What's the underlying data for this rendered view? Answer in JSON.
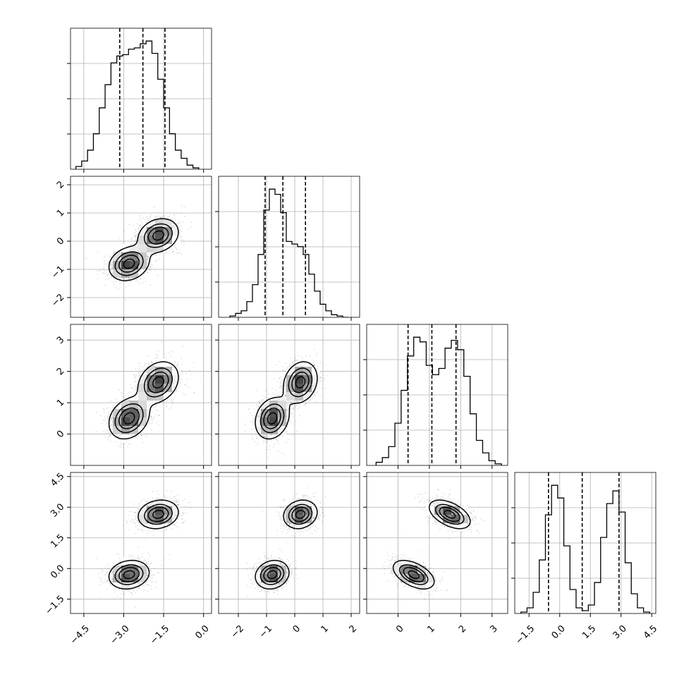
{
  "chart_data": {
    "type": "corner",
    "grid": true,
    "axes": [
      {
        "id": "x0",
        "range": [
          -5.0,
          0.3
        ],
        "ticks": [
          -4.5,
          -3.0,
          -1.5,
          0.0
        ],
        "tick_labels": [
          "−4.5",
          "−3.0",
          "−1.5",
          "0.0"
        ]
      },
      {
        "id": "x1",
        "range": [
          -2.7,
          2.3
        ],
        "ticks": [
          -2,
          -1,
          0,
          1,
          2
        ],
        "tick_labels": [
          "−2",
          "−1",
          "0",
          "1",
          "2"
        ]
      },
      {
        "id": "x2",
        "range": [
          -1.0,
          3.5
        ],
        "ticks": [
          0,
          1,
          2,
          3
        ],
        "tick_labels": [
          "0",
          "1",
          "2",
          "3"
        ]
      },
      {
        "id": "x3",
        "range": [
          -2.2,
          4.7
        ],
        "ticks": [
          -1.5,
          0.0,
          1.5,
          3.0,
          4.5
        ],
        "tick_labels": [
          "−1.5",
          "0.0",
          "1.5",
          "3.0",
          "4.5"
        ]
      }
    ],
    "modes": [
      {
        "center": [
          -2.8,
          -0.8,
          0.5,
          -0.3
        ],
        "sd": [
          0.38,
          0.3,
          0.33,
          0.35
        ]
      },
      {
        "center": [
          -1.7,
          0.2,
          1.65,
          2.65
        ],
        "sd": [
          0.38,
          0.3,
          0.33,
          0.35
        ]
      }
    ],
    "histograms": [
      {
        "param": 0,
        "bins": [
          -4.8,
          -4.58,
          -4.36,
          -4.14,
          -3.92,
          -3.7,
          -3.48,
          -3.26,
          -3.04,
          -2.82,
          -2.6,
          -2.38,
          -2.16,
          -1.94,
          -1.72,
          -1.5,
          -1.28,
          -1.06,
          -0.84,
          -0.62,
          -0.4,
          -0.18
        ],
        "counts": [
          2,
          6,
          14,
          26,
          45,
          62,
          78,
          83,
          84,
          88,
          89,
          92,
          94,
          85,
          66,
          45,
          26,
          14,
          8,
          3,
          1
        ],
        "quantiles": [
          -3.15,
          -2.28,
          -1.45
        ]
      },
      {
        "param": 1,
        "bins": [
          -2.3,
          -2.1,
          -1.9,
          -1.7,
          -1.5,
          -1.3,
          -1.1,
          -0.9,
          -0.7,
          -0.5,
          -0.3,
          -0.1,
          0.1,
          0.3,
          0.5,
          0.7,
          0.9,
          1.1,
          1.3,
          1.5,
          1.7,
          1.9
        ],
        "counts": [
          1,
          3,
          5,
          12,
          25,
          48,
          82,
          98,
          94,
          80,
          58,
          56,
          54,
          48,
          33,
          20,
          10,
          5,
          2,
          1,
          0
        ],
        "quantiles": [
          -1.05,
          -0.42,
          0.38
        ]
      },
      {
        "param": 2,
        "bins": [
          -0.7,
          -0.5,
          -0.3,
          -0.1,
          0.1,
          0.3,
          0.5,
          0.7,
          0.9,
          1.1,
          1.3,
          1.5,
          1.7,
          1.9,
          2.1,
          2.3,
          2.5,
          2.7,
          2.9,
          3.1,
          3.3
        ],
        "counts": [
          2,
          5,
          12,
          27,
          48,
          70,
          82,
          79,
          64,
          58,
          62,
          75,
          80,
          74,
          57,
          33,
          16,
          8,
          3,
          1
        ],
        "quantiles": [
          0.32,
          1.08,
          1.85
        ]
      },
      {
        "param": 3,
        "bins": [
          -1.9,
          -1.6,
          -1.3,
          -1.0,
          -0.7,
          -0.4,
          -0.1,
          0.2,
          0.5,
          0.8,
          1.1,
          1.4,
          1.7,
          2.0,
          2.3,
          2.6,
          2.9,
          3.2,
          3.5,
          3.8,
          4.1,
          4.4
        ],
        "counts": [
          1,
          4,
          15,
          38,
          70,
          91,
          82,
          48,
          17,
          4,
          2,
          6,
          22,
          54,
          78,
          87,
          72,
          36,
          14,
          4,
          1
        ],
        "quantiles": [
          -0.55,
          1.1,
          2.9
        ]
      }
    ]
  }
}
